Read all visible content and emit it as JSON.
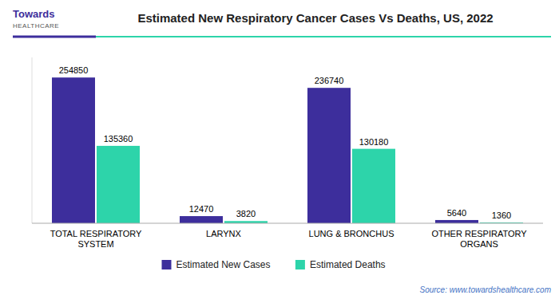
{
  "chart_data": {
    "type": "bar",
    "title": "Estimated New Respiratory Cancer Cases Vs Deaths, US, 2022",
    "categories": [
      "TOTAL RESPIRATORY\nSYSTEM",
      "LARYNX",
      "LUNG & BRONCHUS",
      "OTHER RESPIRATORY\nORGANS"
    ],
    "series": [
      {
        "name": "Estimated New Cases",
        "color": "#3d2e9c",
        "values": [
          254850,
          12470,
          236740,
          5640
        ]
      },
      {
        "name": "Estimated Deaths",
        "color": "#2dd4aa",
        "values": [
          135360,
          3820,
          130180,
          1360
        ]
      }
    ],
    "ylim": [
      0,
      290000
    ],
    "tick_labels": "x",
    "data_labels": true,
    "grid": false,
    "legend": "bottom",
    "annotations": [
      "Towards",
      "HEALTHCARE",
      "Source: www.towardshealthcare.com"
    ]
  }
}
